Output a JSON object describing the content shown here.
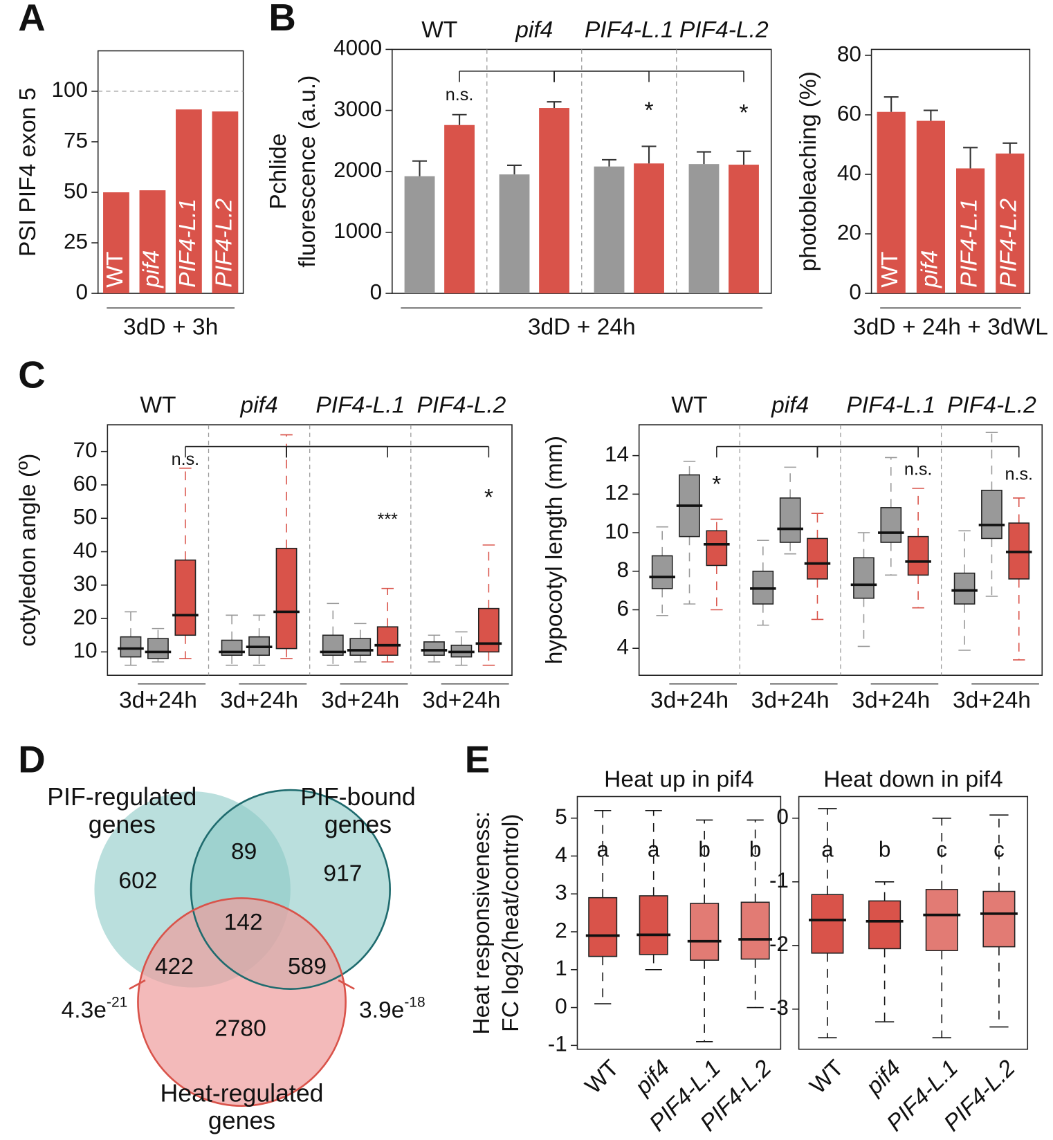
{
  "chart_data": [
    {
      "type": "bar",
      "panel": "A",
      "ylabel": "PSI PIF4 exon 5",
      "xlabel": "3dD + 3h",
      "categories": [
        "WT",
        "pif4",
        "PIF4-L.1",
        "PIF4-L.2"
      ],
      "values": [
        50,
        51,
        91,
        90
      ],
      "color": "#d9534a",
      "ylim": [
        0,
        120
      ],
      "yticks": [
        0,
        25,
        50,
        75,
        100
      ],
      "hline": 100
    },
    {
      "type": "grouped_bar",
      "panel": "B",
      "ylabel": [
        "Pchlide",
        "fluorescence (a.u.)"
      ],
      "xlabel": "3dD + 24h",
      "groups": [
        "WT",
        "pif4",
        "PIF4-L.1",
        "PIF4-L.2"
      ],
      "series": [
        {
          "color": "#999999",
          "values": [
            1920,
            1950,
            2080,
            2120
          ],
          "errors": [
            250,
            150,
            110,
            200
          ]
        },
        {
          "color": "#d9534a",
          "values": [
            2760,
            3040,
            2130,
            2110
          ],
          "errors": [
            170,
            100,
            280,
            220
          ],
          "annotations": [
            "n.s.",
            null,
            "*",
            "*"
          ]
        }
      ],
      "ylim": [
        0,
        4000
      ],
      "yticks": [
        0,
        1000,
        2000,
        3000,
        4000
      ]
    },
    {
      "type": "bar",
      "ylabel": "photobleaching (%)",
      "xlabel": "3dD + 24h + 3dWL",
      "categories": [
        "WT",
        "pif4",
        "PIF4-L.1",
        "PIF4-L.2"
      ],
      "values": [
        61,
        58,
        42,
        47
      ],
      "errors": [
        5,
        3.5,
        7,
        3.5
      ],
      "color": "#d9534a",
      "ylim": [
        0,
        82
      ],
      "yticks": [
        0,
        20,
        40,
        60,
        80
      ]
    },
    {
      "type": "box",
      "panel": "C",
      "ylabel": "cotyledon angle (º)",
      "groups": [
        "WT",
        "pif4",
        "PIF4-L.1",
        "PIF4-L.2"
      ],
      "group_xlabels": [
        "3d+24h",
        "3d+24h",
        "3d+24h",
        "3d+24h"
      ],
      "series": [
        {
          "color": "#999999",
          "boxes": [
            [
              6,
              8.5,
              11,
              14.5,
              22
            ],
            [
              6,
              9,
              10,
              13.5,
              21
            ],
            [
              6,
              9,
              10,
              15,
              24.5
            ],
            [
              7,
              9,
              10.5,
              13,
              15
            ]
          ]
        },
        {
          "color": "#999999",
          "boxes": [
            [
              7,
              8,
              10,
              14,
              17
            ],
            [
              6,
              9,
              11.5,
              14.5,
              21
            ],
            [
              7,
              9,
              10.5,
              14,
              18.5
            ],
            [
              6,
              8.5,
              10,
              12,
              16
            ]
          ]
        },
        {
          "color": "#d9534a",
          "boxes": [
            [
              8,
              15,
              21,
              37.5,
              65
            ],
            [
              8,
              11,
              22,
              41,
              75
            ],
            [
              7,
              9,
              12,
              17.5,
              29
            ],
            [
              6,
              10,
              12.5,
              23,
              42
            ]
          ],
          "annotations": [
            "n.s.",
            null,
            "***",
            "*"
          ]
        }
      ],
      "ylim": [
        3,
        78
      ],
      "yticks": [
        10,
        20,
        30,
        40,
        50,
        60,
        70
      ]
    },
    {
      "type": "box",
      "ylabel": "hypocotyl length (mm)",
      "groups": [
        "WT",
        "pif4",
        "PIF4-L.1",
        "PIF4-L.2"
      ],
      "group_xlabels": [
        "3d+24h",
        "3d+24h",
        "3d+24h",
        "3d+24h"
      ],
      "series": [
        {
          "color": "#999999",
          "boxes": [
            [
              5.7,
              7.1,
              7.7,
              8.8,
              10.3
            ],
            [
              5.2,
              6.3,
              7.1,
              8,
              9.6
            ],
            [
              4.1,
              6.6,
              7.3,
              8.7,
              10
            ],
            [
              3.9,
              6.3,
              7,
              7.9,
              10.1
            ]
          ]
        },
        {
          "color": "#999999",
          "boxes": [
            [
              6.3,
              9.8,
              11.4,
              13,
              13.7
            ],
            [
              8.9,
              9.5,
              10.2,
              11.8,
              13.4
            ],
            [
              7.8,
              9.5,
              10,
              11.3,
              13.9
            ],
            [
              6.7,
              9.7,
              10.4,
              12.2,
              15.2
            ]
          ]
        },
        {
          "color": "#d9534a",
          "boxes": [
            [
              6,
              8.3,
              9.4,
              10.1,
              10.7
            ],
            [
              5.5,
              7.6,
              8.4,
              9.7,
              11
            ],
            [
              6.1,
              7.8,
              8.5,
              9.8,
              12.3
            ],
            [
              3.4,
              7.6,
              9,
              10.5,
              11.8
            ]
          ],
          "annotations": [
            "*",
            null,
            "n.s.",
            "n.s."
          ]
        }
      ],
      "ylim": [
        2.6,
        15.6
      ],
      "yticks": [
        4,
        6,
        8,
        10,
        12,
        14
      ]
    },
    {
      "type": "venn",
      "panel": "D",
      "sets": [
        [
          "PIF-regulated",
          "genes"
        ],
        [
          "PIF-bound",
          "genes"
        ],
        [
          "Heat-regulated",
          "genes"
        ]
      ],
      "colors": [
        "#8ccac6",
        "#8ccac6",
        "#ee9d9d"
      ],
      "values": [
        602,
        917,
        2780,
        89,
        422,
        589,
        142
      ],
      "pvalues": [
        {
          "base": "4.3e",
          "exponent": "-21"
        },
        {
          "base": "3.9e",
          "exponent": "-18"
        }
      ]
    },
    {
      "type": "box",
      "panel": "E",
      "title": "Heat up in pif4",
      "ylabel": [
        "Heat responsiveness:",
        "FC log2(heat/control)"
      ],
      "categories": [
        "WT",
        "pif4",
        "PIF4-L.1",
        "PIF4-L.2"
      ],
      "boxes": [
        [
          0.1,
          1.35,
          1.9,
          2.9,
          5.2
        ],
        [
          1,
          1.4,
          1.92,
          2.95,
          5.2
        ],
        [
          -0.9,
          1.25,
          1.75,
          2.75,
          4.95
        ],
        [
          0,
          1.28,
          1.8,
          2.78,
          4.95
        ]
      ],
      "colors": [
        "#d9534a",
        "#d9534a",
        "#e27b74",
        "#e27b74"
      ],
      "annotations": [
        "a",
        "a",
        "b",
        "b"
      ],
      "ylim": [
        -1.1,
        5.57
      ],
      "yticks": [
        -1,
        0,
        1,
        2,
        3,
        4,
        5
      ]
    },
    {
      "type": "box",
      "title": "Heat down in pif4",
      "categories": [
        "WT",
        "pif4",
        "PIF4-L.1",
        "PIF4-L.2"
      ],
      "boxes": [
        [
          -3.45,
          -2.12,
          -1.6,
          -1.2,
          0.15
        ],
        [
          -3.2,
          -2.05,
          -1.62,
          -1.3,
          -1.0
        ],
        [
          -3.45,
          -2.08,
          -1.52,
          -1.12,
          0
        ],
        [
          -3.28,
          -2.02,
          -1.5,
          -1.15,
          0.05
        ]
      ],
      "colors": [
        "#d9534a",
        "#d9534a",
        "#e27b74",
        "#e27b74"
      ],
      "annotations": [
        "a",
        "b",
        "c",
        "c"
      ],
      "ylim": [
        -3.63,
        0.34
      ],
      "yticks": [
        -3,
        -2,
        -1,
        0
      ]
    }
  ]
}
